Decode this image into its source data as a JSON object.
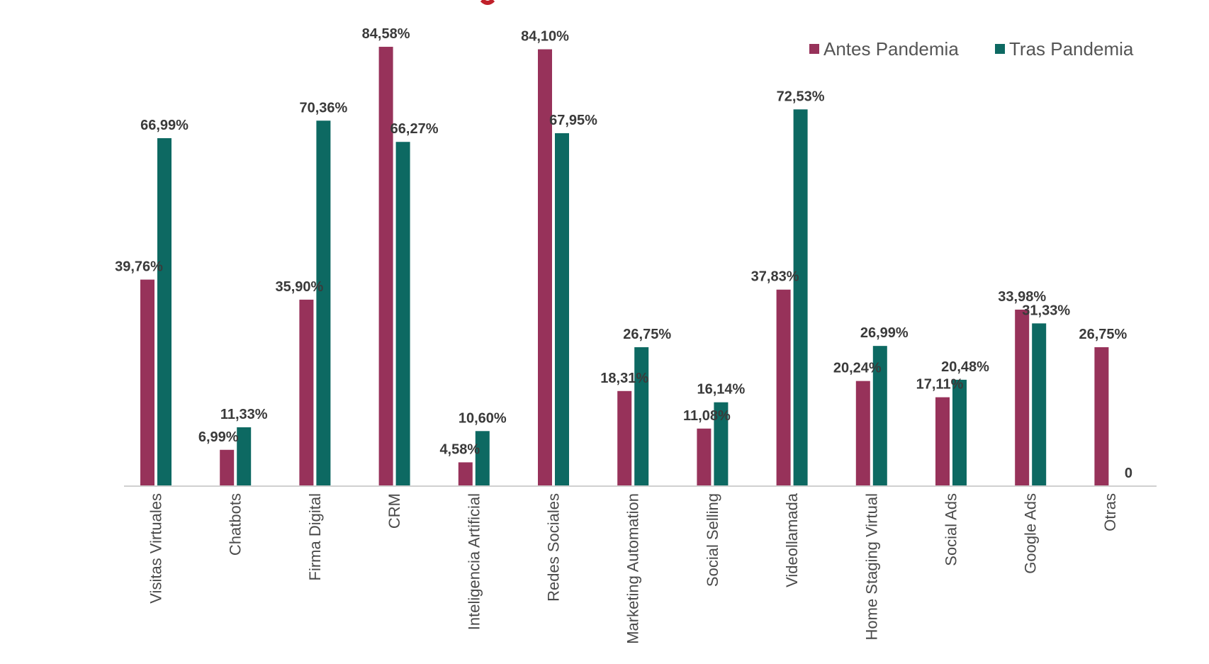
{
  "chart_data": {
    "type": "bar",
    "title": "",
    "xlabel": "",
    "ylabel": "",
    "ylim": [
      0,
      90
    ],
    "grid": false,
    "legend_position": "top-right",
    "categories": [
      "Visitas Virtuales",
      "Chatbots",
      "Firma Digital",
      "CRM",
      "Inteligencia Artificial",
      "Redes Sociales",
      "Marketing Automation",
      "Social Selling",
      "Videollamada",
      "Home Staging Virtual",
      "Social Ads",
      "Google Ads",
      "Otras"
    ],
    "series": [
      {
        "name": "Antes Pandemia",
        "color": "#97325a",
        "values": [
          39.76,
          6.99,
          35.9,
          84.58,
          4.58,
          84.1,
          18.31,
          11.08,
          37.83,
          20.24,
          17.11,
          33.98,
          26.75
        ],
        "labels": [
          "39,76%",
          "6,99%",
          "35,90%",
          "84,58%",
          "4,58%",
          "84,10%",
          "18,31%",
          "11,08%",
          "37,83%",
          "20,24%",
          "17,11%",
          "33,98%",
          "26,75%"
        ]
      },
      {
        "name": "Tras Pandemia",
        "color": "#0d6962",
        "values": [
          66.99,
          11.33,
          70.36,
          66.27,
          10.6,
          67.95,
          26.75,
          16.14,
          72.53,
          26.99,
          20.48,
          31.33,
          0
        ],
        "labels": [
          "66,99%",
          "11,33%",
          "70,36%",
          "66,27%",
          "10,60%",
          "67,95%",
          "26,75%",
          "16,14%",
          "72,53%",
          "26,99%",
          "20,48%",
          "31,33%",
          "0"
        ]
      }
    ]
  }
}
